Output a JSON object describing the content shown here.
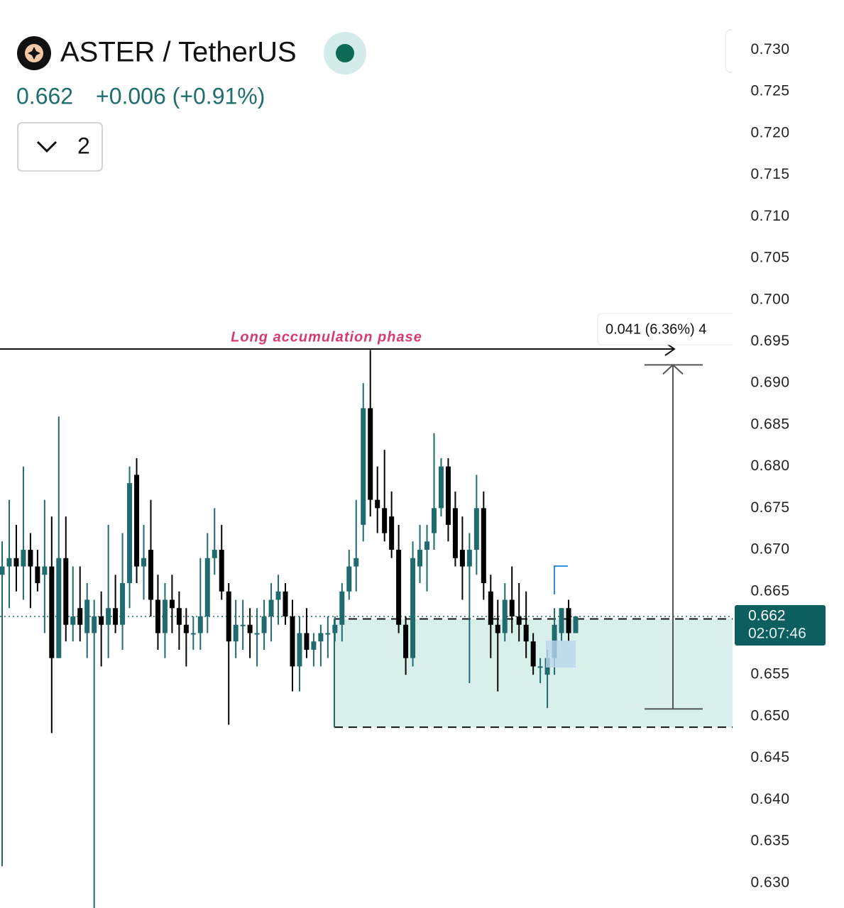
{
  "header": {
    "symbol": "ASTER / TetherUS",
    "interval": "2"
  },
  "chart_data": {
    "type": "candlestick",
    "price": 0.662,
    "change": "+0.006 (+0.91%)",
    "countdown": "02:07:46",
    "annotation": "Long accumulation phase",
    "measure_label": "0.041 (6.36%) 4",
    "up_color": "#1f6b6e",
    "down_color": "#000000",
    "ylim": [
      0.627,
      0.736
    ],
    "yticks": [
      {
        "value": 0.73,
        "label": "0.730"
      },
      {
        "value": 0.725,
        "label": "0.725"
      },
      {
        "value": 0.72,
        "label": "0.720"
      },
      {
        "value": 0.715,
        "label": "0.715"
      },
      {
        "value": 0.71,
        "label": "0.710"
      },
      {
        "value": 0.705,
        "label": "0.705"
      },
      {
        "value": 0.7,
        "label": "0.700"
      },
      {
        "value": 0.695,
        "label": "0.695"
      },
      {
        "value": 0.69,
        "label": "0.690"
      },
      {
        "value": 0.685,
        "label": "0.685"
      },
      {
        "value": 0.68,
        "label": "0.680"
      },
      {
        "value": 0.675,
        "label": "0.675"
      },
      {
        "value": 0.67,
        "label": "0.670"
      },
      {
        "value": 0.665,
        "label": "0.665"
      },
      {
        "value": 0.66,
        "label": "0.660"
      },
      {
        "value": 0.655,
        "label": "0.655"
      },
      {
        "value": 0.65,
        "label": "0.650"
      },
      {
        "value": 0.645,
        "label": "0.645"
      },
      {
        "value": 0.64,
        "label": "0.640"
      },
      {
        "value": 0.635,
        "label": "0.635"
      },
      {
        "value": 0.63,
        "label": "0.630"
      }
    ],
    "resistance": 0.6941,
    "range_box": [
      0.6617,
      0.6487
    ],
    "measure": [
      0.6509,
      0.6922
    ],
    "open": [
      0.667,
      0.668,
      0.669,
      0.668,
      0.67,
      0.668,
      0.667,
      0.668,
      0.657,
      0.669,
      0.661,
      0.663,
      0.66,
      0.66,
      0.662,
      0.661,
      0.663,
      0.661,
      0.666,
      0.679,
      0.668,
      0.67,
      0.664,
      0.66,
      0.664,
      0.663,
      0.661,
      0.66,
      0.66,
      0.662,
      0.669,
      0.67,
      0.665,
      0.659,
      0.661,
      0.661,
      0.66,
      0.66,
      0.662,
      0.664,
      0.665,
      0.662,
      0.656,
      0.66,
      0.658,
      0.659,
      0.66,
      0.66,
      0.661,
      0.665,
      0.668,
      0.673,
      0.687,
      0.676,
      0.675,
      0.674,
      0.67,
      0.661,
      0.657,
      0.668,
      0.67,
      0.672,
      0.675,
      0.68,
      0.675,
      0.67,
      0.668,
      0.67,
      0.675,
      0.665,
      0.661,
      0.66,
      0.664,
      0.662,
      0.661,
      0.659,
      0.656,
      0.655,
      0.657,
      0.66,
      0.663,
      0.66
    ],
    "high": [
      0.671,
      0.676,
      0.673,
      0.68,
      0.672,
      0.67,
      0.676,
      0.674,
      0.686,
      0.674,
      0.668,
      0.668,
      0.666,
      0.664,
      0.665,
      0.673,
      0.667,
      0.672,
      0.68,
      0.681,
      0.673,
      0.676,
      0.667,
      0.666,
      0.667,
      0.665,
      0.663,
      0.662,
      0.669,
      0.672,
      0.675,
      0.673,
      0.666,
      0.664,
      0.664,
      0.663,
      0.663,
      0.664,
      0.666,
      0.667,
      0.666,
      0.664,
      0.662,
      0.663,
      0.66,
      0.661,
      0.662,
      0.662,
      0.666,
      0.67,
      0.676,
      0.69,
      0.694,
      0.68,
      0.682,
      0.677,
      0.673,
      0.662,
      0.671,
      0.673,
      0.673,
      0.684,
      0.681,
      0.681,
      0.677,
      0.674,
      0.672,
      0.679,
      0.677,
      0.667,
      0.664,
      0.666,
      0.668,
      0.666,
      0.665,
      0.66,
      0.657,
      0.658,
      0.663,
      0.663,
      0.664,
      0.662
    ],
    "low": [
      0.632,
      0.663,
      0.665,
      0.664,
      0.663,
      0.665,
      0.66,
      0.648,
      0.657,
      0.659,
      0.659,
      0.659,
      0.657,
      0.627,
      0.656,
      0.657,
      0.66,
      0.658,
      0.663,
      0.666,
      0.664,
      0.662,
      0.658,
      0.657,
      0.66,
      0.658,
      0.656,
      0.658,
      0.658,
      0.66,
      0.667,
      0.664,
      0.649,
      0.657,
      0.658,
      0.657,
      0.656,
      0.658,
      0.659,
      0.661,
      0.661,
      0.653,
      0.653,
      0.657,
      0.656,
      0.656,
      0.657,
      0.659,
      0.659,
      0.664,
      0.665,
      0.671,
      0.674,
      0.672,
      0.671,
      0.669,
      0.66,
      0.655,
      0.656,
      0.666,
      0.665,
      0.67,
      0.674,
      0.671,
      0.668,
      0.664,
      0.654,
      0.667,
      0.664,
      0.657,
      0.653,
      0.659,
      0.66,
      0.659,
      0.657,
      0.655,
      0.654,
      0.651,
      0.655,
      0.659,
      0.659,
      0.66
    ],
    "close": [
      0.668,
      0.669,
      0.668,
      0.67,
      0.668,
      0.666,
      0.668,
      0.657,
      0.669,
      0.661,
      0.662,
      0.661,
      0.664,
      0.662,
      0.661,
      0.663,
      0.661,
      0.666,
      0.678,
      0.668,
      0.669,
      0.664,
      0.66,
      0.664,
      0.663,
      0.661,
      0.66,
      0.66,
      0.662,
      0.669,
      0.67,
      0.665,
      0.659,
      0.661,
      0.661,
      0.66,
      0.66,
      0.662,
      0.664,
      0.665,
      0.662,
      0.656,
      0.66,
      0.658,
      0.659,
      0.66,
      0.66,
      0.661,
      0.665,
      0.668,
      0.669,
      0.687,
      0.676,
      0.675,
      0.672,
      0.67,
      0.661,
      0.657,
      0.669,
      0.67,
      0.671,
      0.675,
      0.68,
      0.673,
      0.669,
      0.668,
      0.67,
      0.675,
      0.666,
      0.661,
      0.66,
      0.664,
      0.662,
      0.661,
      0.659,
      0.656,
      0.656,
      0.657,
      0.661,
      0.663,
      0.66,
      0.662
    ]
  }
}
